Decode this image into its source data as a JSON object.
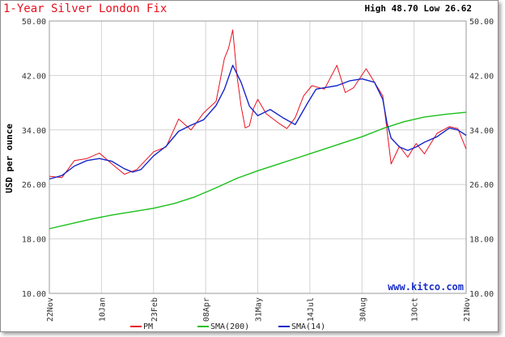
{
  "chart_data": {
    "type": "line",
    "title": "1-Year Silver London Fix",
    "high_low": "High 48.70 Low 26.62",
    "ylabel": "USD per ounce",
    "watermark": "www.kitco.com",
    "ylim": [
      10,
      50
    ],
    "y_ticks": [
      "10.00",
      "18.00",
      "26.00",
      "34.00",
      "42.00",
      "50.00"
    ],
    "x_ticks": [
      "22Nov",
      "10Jan",
      "23Feb",
      "08Apr",
      "31May",
      "14Jul",
      "30Aug",
      "13Oct",
      "21Nov"
    ],
    "grid": true,
    "legend_position": "bottom",
    "series": [
      {
        "name": "PM",
        "color": "#e8101e",
        "x": [
          0,
          0.03,
          0.06,
          0.09,
          0.12,
          0.15,
          0.18,
          0.21,
          0.25,
          0.28,
          0.31,
          0.34,
          0.37,
          0.4,
          0.42,
          0.43,
          0.44,
          0.45,
          0.46,
          0.47,
          0.48,
          0.49,
          0.5,
          0.52,
          0.55,
          0.57,
          0.59,
          0.61,
          0.63,
          0.66,
          0.69,
          0.71,
          0.73,
          0.76,
          0.78,
          0.8,
          0.81,
          0.82,
          0.84,
          0.86,
          0.88,
          0.9,
          0.93,
          0.96,
          0.98,
          1.0
        ],
        "values": [
          27.2,
          27.0,
          29.5,
          29.8,
          30.6,
          29.0,
          27.5,
          28.2,
          30.8,
          31.5,
          35.6,
          34.0,
          36.5,
          38.2,
          44.5,
          46.0,
          48.7,
          42.0,
          37.5,
          34.3,
          34.6,
          37.2,
          38.5,
          36.4,
          35.0,
          34.2,
          35.8,
          39.0,
          40.5,
          40.0,
          43.5,
          39.5,
          40.2,
          43.0,
          41.0,
          39.0,
          34.0,
          29.0,
          31.6,
          30.0,
          32.0,
          30.5,
          33.5,
          34.5,
          34.2,
          31.2
        ]
      },
      {
        "name": "SMA(200)",
        "color": "#19c019",
        "x": [
          0,
          0.05,
          0.1,
          0.15,
          0.2,
          0.25,
          0.3,
          0.35,
          0.4,
          0.45,
          0.5,
          0.55,
          0.6,
          0.65,
          0.7,
          0.75,
          0.8,
          0.85,
          0.9,
          0.95,
          1.0
        ],
        "values": [
          19.5,
          20.2,
          20.9,
          21.5,
          22.0,
          22.5,
          23.2,
          24.2,
          25.5,
          26.9,
          28.0,
          29.0,
          30.0,
          31.0,
          32.0,
          33.0,
          34.2,
          35.2,
          35.9,
          36.3,
          36.6
        ]
      },
      {
        "name": "SMA(14)",
        "color": "#1426c8",
        "x": [
          0,
          0.03,
          0.06,
          0.09,
          0.12,
          0.15,
          0.18,
          0.2,
          0.22,
          0.25,
          0.28,
          0.31,
          0.34,
          0.37,
          0.4,
          0.42,
          0.44,
          0.46,
          0.48,
          0.5,
          0.53,
          0.56,
          0.59,
          0.62,
          0.64,
          0.66,
          0.69,
          0.72,
          0.75,
          0.78,
          0.8,
          0.81,
          0.82,
          0.84,
          0.86,
          0.88,
          0.9,
          0.93,
          0.96,
          0.98,
          1.0
        ],
        "values": [
          26.8,
          27.3,
          28.7,
          29.5,
          29.8,
          29.4,
          28.3,
          27.8,
          28.2,
          30.2,
          31.6,
          33.8,
          34.7,
          35.5,
          37.6,
          40.0,
          43.5,
          41.0,
          37.5,
          36.1,
          37.0,
          35.8,
          34.8,
          38.0,
          40.0,
          40.2,
          40.5,
          41.2,
          41.5,
          41.0,
          38.5,
          35.0,
          32.8,
          31.5,
          31.0,
          31.5,
          32.2,
          33.0,
          34.3,
          34.0,
          33.2
        ]
      }
    ]
  }
}
